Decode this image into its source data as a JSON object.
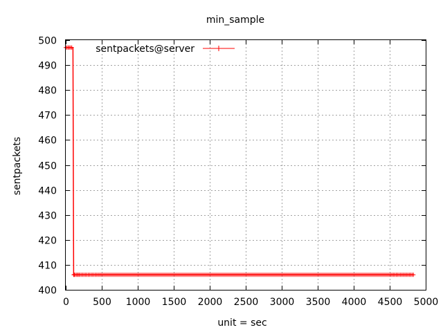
{
  "chart_data": {
    "type": "line",
    "title": "min_sample",
    "xlabel": "unit = sec",
    "ylabel": "sentpackets",
    "xlim": [
      0,
      5000
    ],
    "ylim": [
      400,
      500
    ],
    "xticks": [
      0,
      500,
      1000,
      1500,
      2000,
      2500,
      3000,
      3500,
      4000,
      4500,
      5000
    ],
    "yticks": [
      400,
      410,
      420,
      430,
      440,
      450,
      460,
      470,
      480,
      490,
      500
    ],
    "grid": true,
    "legend_position": "top-left",
    "series": [
      {
        "name": "sentpackets@server",
        "color": "#ff0000",
        "marker": "plus",
        "x": [
          0,
          50,
          100,
          105,
          110,
          115,
          120,
          200,
          500,
          1000,
          1500,
          2000,
          2500,
          3000,
          3500,
          4000,
          4500,
          4830
        ],
        "y": [
          497,
          497,
          497,
          451,
          406,
          406,
          406,
          406,
          406,
          406,
          406,
          406,
          406,
          406,
          406,
          406,
          406,
          406
        ]
      }
    ]
  }
}
